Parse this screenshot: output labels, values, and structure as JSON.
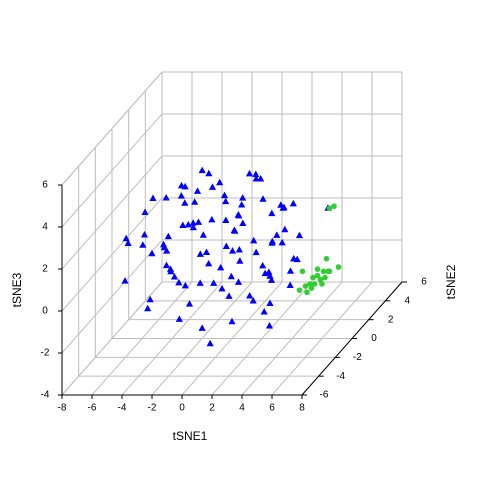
{
  "chart_data": {
    "type": "scatter3d",
    "x_label": "tSNE1",
    "y_label": "tSNE2",
    "z_label": "tSNE3",
    "xlim": [
      -8,
      8
    ],
    "ylim": [
      -6,
      6
    ],
    "zlim": [
      -4,
      6
    ],
    "xticks": [
      -8,
      -6,
      -4,
      -2,
      0,
      2,
      4,
      6,
      8
    ],
    "yticks": [
      -6,
      -4,
      -2,
      0,
      2,
      4,
      6
    ],
    "zticks": [
      -4,
      -2,
      0,
      2,
      4,
      6
    ],
    "grid": true,
    "series": [
      {
        "color": "#0000ff",
        "marker": "triangle",
        "x": [
          -7.2,
          -6.5,
          -6.0,
          -5.8,
          -5.5,
          -5.2,
          -5.0,
          -4.8,
          -4.5,
          -4.3,
          -4.1,
          -3.9,
          -3.7,
          -3.5,
          -3.3,
          -3.1,
          -3.0,
          -2.8,
          -2.6,
          -2.5,
          -2.3,
          -2.1,
          -2.0,
          -1.8,
          -1.6,
          -1.5,
          -1.3,
          -1.1,
          -1.0,
          -0.8,
          -0.6,
          -0.5,
          -0.3,
          -0.1,
          0.0,
          0.2,
          0.4,
          0.5,
          0.7,
          0.9,
          1.0,
          1.2,
          1.4,
          1.5,
          1.7,
          1.9,
          2.0,
          2.2,
          2.4,
          2.5,
          2.7,
          2.9,
          3.0,
          3.2,
          3.4,
          3.6,
          3.8,
          4.0,
          4.2,
          4.5,
          -6.8,
          -5.6,
          -4.9,
          -4.0,
          -3.4,
          -2.7,
          -2.2,
          -1.7,
          -1.2,
          -0.7,
          -0.2,
          0.3,
          0.8,
          1.3,
          1.8,
          2.3,
          2.8,
          3.3,
          3.9,
          4.4,
          -5.3,
          -4.4,
          -3.6,
          -2.9,
          -1.9,
          -0.9,
          0.1,
          1.1,
          2.1,
          3.1,
          -3.8,
          -2.4,
          -1.4,
          -0.4,
          0.6,
          1.6,
          2.6,
          -1.0,
          0.5,
          6.4
        ],
        "y": [
          0.5,
          -1.0,
          1.2,
          0.0,
          -0.8,
          1.5,
          -1.5,
          0.8,
          0.2,
          -0.4,
          1.0,
          -1.2,
          0.6,
          -0.6,
          1.8,
          -1.8,
          0.3,
          -0.2,
          1.1,
          -1.1,
          0.7,
          -0.7,
          1.4,
          -1.4,
          0.1,
          -0.1,
          1.6,
          -1.6,
          0.9,
          -0.9,
          0.4,
          -0.3,
          1.3,
          -1.3,
          0.0,
          0.8,
          -0.8,
          1.2,
          -1.2,
          0.5,
          -0.5,
          1.7,
          -1.7,
          0.2,
          -0.2,
          1.0,
          -1.0,
          0.6,
          -0.6,
          0.3,
          -0.3,
          0.9,
          -0.9,
          0.1,
          -0.1,
          0.5,
          -0.5,
          0.2,
          -0.2,
          0.0,
          -0.6,
          0.6,
          -1.3,
          1.3,
          -0.2,
          0.2,
          -1.7,
          1.7,
          -0.9,
          0.9,
          -0.4,
          0.4,
          -1.1,
          1.1,
          -0.7,
          0.7,
          -0.3,
          0.3,
          0.0,
          -0.1,
          1.9,
          -1.9,
          0.4,
          -0.4,
          1.0,
          -1.0,
          0.7,
          -0.7,
          0.2,
          -0.2,
          -0.5,
          0.5,
          -1.5,
          1.5,
          -0.8,
          0.8,
          0.1,
          -2.0,
          2.0,
          0.0
        ],
        "z": [
          0.3,
          1.2,
          -0.5,
          2.0,
          0.8,
          -1.2,
          1.6,
          -0.2,
          2.6,
          0.5,
          -1.8,
          1.0,
          3.0,
          -0.8,
          2.2,
          0.1,
          -2.5,
          1.5,
          3.5,
          -1.0,
          0.6,
          2.8,
          -2.0,
          1.9,
          3.8,
          -0.4,
          0.9,
          -2.8,
          2.4,
          3.6,
          0.2,
          -1.5,
          1.3,
          4.0,
          -3.2,
          2.0,
          -0.7,
          3.3,
          0.7,
          -2.2,
          1.7,
          -3.5,
          2.6,
          0.0,
          3.9,
          -1.3,
          1.1,
          -2.6,
          2.9,
          0.4,
          -0.9,
          1.8,
          -3.0,
          2.3,
          0.6,
          -1.7,
          1.4,
          -0.3,
          2.5,
          0.9,
          -1.0,
          2.4,
          -2.0,
          0.8,
          -3.0,
          1.4,
          3.2,
          -1.4,
          0.5,
          -2.4,
          2.7,
          -0.5,
          1.6,
          3.1,
          -1.9,
          0.3,
          -1.1,
          2.1,
          -0.8,
          -0.2,
          0.0,
          -1.3,
          2.6,
          3.4,
          1.2,
          -3.8,
          -0.1,
          3.0,
          -1.0,
          1.0,
          -0.6,
          -1.6,
          2.2,
          -2.0,
          1.5,
          -0.9,
          1.9,
          0.9,
          2.7,
          2.2
        ]
      },
      {
        "color": "#32cd32",
        "marker": "circle",
        "x": [
          4.9,
          5.2,
          5.5,
          5.9,
          6.2,
          6.5,
          6.1,
          5.7,
          5.3,
          5.0,
          4.7,
          5.7,
          6.4,
          7.1,
          6.3,
          6.8,
          6.5,
          4.5,
          5.4,
          6.0
        ],
        "y": [
          0,
          0,
          0,
          0,
          0,
          0,
          0,
          0,
          0,
          0,
          0,
          0,
          0,
          0,
          0,
          0,
          0,
          0,
          0,
          0
        ],
        "z": [
          -1.5,
          -1.4,
          -1.4,
          -1.2,
          -1.1,
          -0.8,
          -0.8,
          -1.0,
          -1.6,
          -1.8,
          -0.8,
          -0.7,
          -0.8,
          -0.6,
          -0.2,
          2.3,
          2.2,
          -1.7,
          -1.1,
          -1.4
        ]
      }
    ]
  }
}
